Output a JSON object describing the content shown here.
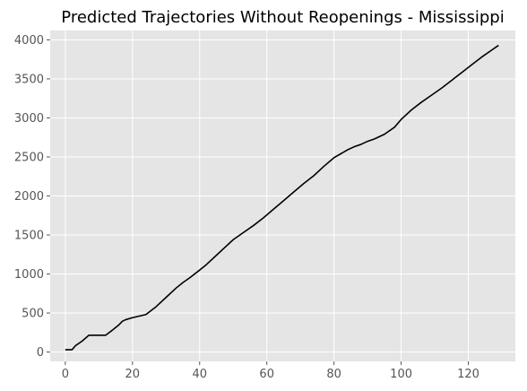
{
  "chart_data": {
    "type": "line",
    "title": "Predicted Trajectories Without Reopenings - Mississippi",
    "xlabel": "",
    "ylabel": "",
    "xlim": [
      -4.5,
      134
    ],
    "ylim": [
      -120,
      4120
    ],
    "xticks": [
      0,
      20,
      40,
      60,
      80,
      100,
      120
    ],
    "yticks": [
      0,
      500,
      1000,
      1500,
      2000,
      2500,
      3000,
      3500,
      4000
    ],
    "grid": true,
    "style": "ggplot",
    "colors": {
      "background": "#e5e5e5",
      "grid": "#ffffff",
      "line": "#000000",
      "tick_text": "#555555"
    },
    "series": [
      {
        "x": [
          0,
          2,
          3,
          5,
          7,
          9,
          12,
          14,
          16,
          17,
          18,
          20,
          22,
          24,
          27,
          30,
          33,
          35,
          37,
          40,
          42,
          45,
          48,
          50,
          53,
          56,
          59,
          62,
          65,
          68,
          71,
          74,
          77,
          80,
          82,
          84,
          86,
          88,
          90,
          92,
          95,
          98,
          100,
          103,
          106,
          109,
          112,
          115,
          118,
          121,
          124,
          127,
          129
        ],
        "values": [
          30,
          30,
          80,
          140,
          215,
          215,
          215,
          280,
          350,
          395,
          415,
          440,
          460,
          480,
          580,
          700,
          820,
          890,
          950,
          1050,
          1120,
          1240,
          1360,
          1440,
          1530,
          1620,
          1720,
          1830,
          1940,
          2050,
          2160,
          2260,
          2380,
          2490,
          2540,
          2590,
          2630,
          2660,
          2700,
          2730,
          2790,
          2880,
          2980,
          3100,
          3200,
          3290,
          3380,
          3480,
          3580,
          3680,
          3780,
          3870,
          3930
        ]
      }
    ]
  }
}
